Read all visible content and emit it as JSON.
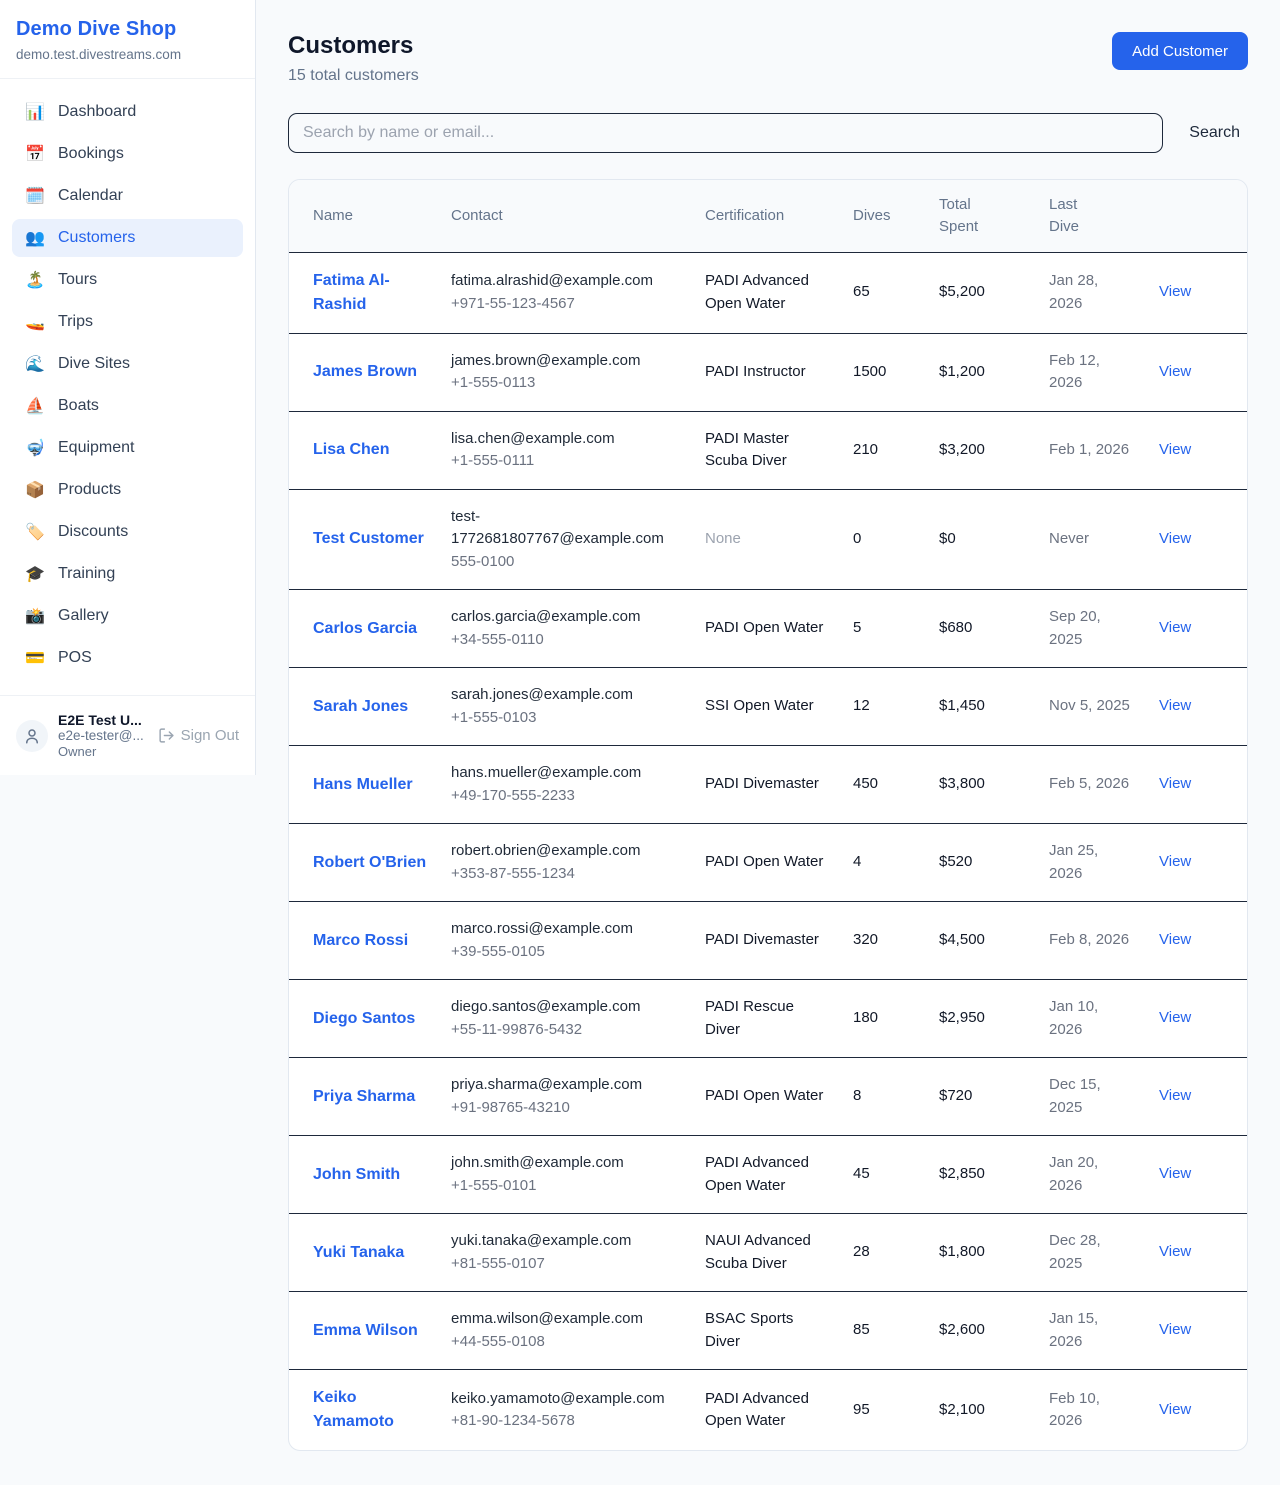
{
  "sidebar": {
    "title": "Demo Dive Shop",
    "subtitle": "demo.test.divestreams.com",
    "items": [
      {
        "label": "Dashboard",
        "icon": "📊",
        "active": false
      },
      {
        "label": "Bookings",
        "icon": "📅",
        "active": false
      },
      {
        "label": "Calendar",
        "icon": "🗓️",
        "active": false
      },
      {
        "label": "Customers",
        "icon": "👥",
        "active": true
      },
      {
        "label": "Tours",
        "icon": "🏝️",
        "active": false
      },
      {
        "label": "Trips",
        "icon": "🚤",
        "active": false
      },
      {
        "label": "Dive Sites",
        "icon": "🌊",
        "active": false
      },
      {
        "label": "Boats",
        "icon": "⛵",
        "active": false
      },
      {
        "label": "Equipment",
        "icon": "🤿",
        "active": false
      },
      {
        "label": "Products",
        "icon": "📦",
        "active": false
      },
      {
        "label": "Discounts",
        "icon": "🏷️",
        "active": false
      },
      {
        "label": "Training",
        "icon": "🎓",
        "active": false
      },
      {
        "label": "Gallery",
        "icon": "📸",
        "active": false
      },
      {
        "label": "POS",
        "icon": "💳",
        "active": false
      }
    ],
    "user": {
      "name": "E2E Test U...",
      "email": "e2e-tester@...",
      "role": "Owner",
      "sign_out_label": "Sign Out"
    }
  },
  "header": {
    "title": "Customers",
    "subtitle": "15 total customers",
    "add_button": "Add Customer"
  },
  "search": {
    "placeholder": "Search by name or email...",
    "button": "Search"
  },
  "table": {
    "columns": [
      "Name",
      "Contact",
      "Certification",
      "Dives",
      "Total Spent",
      "Last Dive",
      ""
    ],
    "rows": [
      {
        "name": "Fatima Al-Rashid",
        "email": "fatima.alrashid@example.com",
        "phone": "+971-55-123-4567",
        "certification": "PADI Advanced Open Water",
        "dives": "65",
        "total_spent": "$5,200",
        "last_dive": "Jan 28, 2026",
        "action": "View"
      },
      {
        "name": "James Brown",
        "email": "james.brown@example.com",
        "phone": "+1-555-0113",
        "certification": "PADI Instructor",
        "dives": "1500",
        "total_spent": "$1,200",
        "last_dive": "Feb 12, 2026",
        "action": "View"
      },
      {
        "name": "Lisa Chen",
        "email": "lisa.chen@example.com",
        "phone": "+1-555-0111",
        "certification": "PADI Master Scuba Diver",
        "dives": "210",
        "total_spent": "$3,200",
        "last_dive": "Feb 1, 2026",
        "action": "View"
      },
      {
        "name": "Test Customer",
        "email": "test-1772681807767@example.com",
        "phone": "555-0100",
        "certification": "None",
        "dives": "0",
        "total_spent": "$0",
        "last_dive": "Never",
        "action": "View"
      },
      {
        "name": "Carlos Garcia",
        "email": "carlos.garcia@example.com",
        "phone": "+34-555-0110",
        "certification": "PADI Open Water",
        "dives": "5",
        "total_spent": "$680",
        "last_dive": "Sep 20, 2025",
        "action": "View"
      },
      {
        "name": "Sarah Jones",
        "email": "sarah.jones@example.com",
        "phone": "+1-555-0103",
        "certification": "SSI Open Water",
        "dives": "12",
        "total_spent": "$1,450",
        "last_dive": "Nov 5, 2025",
        "action": "View"
      },
      {
        "name": "Hans Mueller",
        "email": "hans.mueller@example.com",
        "phone": "+49-170-555-2233",
        "certification": "PADI Divemaster",
        "dives": "450",
        "total_spent": "$3,800",
        "last_dive": "Feb 5, 2026",
        "action": "View"
      },
      {
        "name": "Robert O'Brien",
        "email": "robert.obrien@example.com",
        "phone": "+353-87-555-1234",
        "certification": "PADI Open Water",
        "dives": "4",
        "total_spent": "$520",
        "last_dive": "Jan 25, 2026",
        "action": "View"
      },
      {
        "name": "Marco Rossi",
        "email": "marco.rossi@example.com",
        "phone": "+39-555-0105",
        "certification": "PADI Divemaster",
        "dives": "320",
        "total_spent": "$4,500",
        "last_dive": "Feb 8, 2026",
        "action": "View"
      },
      {
        "name": "Diego Santos",
        "email": "diego.santos@example.com",
        "phone": "+55-11-99876-5432",
        "certification": "PADI Rescue Diver",
        "dives": "180",
        "total_spent": "$2,950",
        "last_dive": "Jan 10, 2026",
        "action": "View"
      },
      {
        "name": "Priya Sharma",
        "email": "priya.sharma@example.com",
        "phone": "+91-98765-43210",
        "certification": "PADI Open Water",
        "dives": "8",
        "total_spent": "$720",
        "last_dive": "Dec 15, 2025",
        "action": "View"
      },
      {
        "name": "John Smith",
        "email": "john.smith@example.com",
        "phone": "+1-555-0101",
        "certification": "PADI Advanced Open Water",
        "dives": "45",
        "total_spent": "$2,850",
        "last_dive": "Jan 20, 2026",
        "action": "View"
      },
      {
        "name": "Yuki Tanaka",
        "email": "yuki.tanaka@example.com",
        "phone": "+81-555-0107",
        "certification": "NAUI Advanced Scuba Diver",
        "dives": "28",
        "total_spent": "$1,800",
        "last_dive": "Dec 28, 2025",
        "action": "View"
      },
      {
        "name": "Emma Wilson",
        "email": "emma.wilson@example.com",
        "phone": "+44-555-0108",
        "certification": "BSAC Sports Diver",
        "dives": "85",
        "total_spent": "$2,600",
        "last_dive": "Jan 15, 2026",
        "action": "View"
      },
      {
        "name": "Keiko Yamamoto",
        "email": "keiko.yamamoto@example.com",
        "phone": "+81-90-1234-5678",
        "certification": "PADI Advanced Open Water",
        "dives": "95",
        "total_spent": "$2,100",
        "last_dive": "Feb 10, 2026",
        "action": "View"
      }
    ]
  },
  "colors": {
    "accent": "#2563eb",
    "accent_light_bg": "#eaf1fd",
    "page_bg": "#f8fafc",
    "row_divider": "#1e293b",
    "card_border": "#e2e8f0",
    "muted_text": "#64748b"
  }
}
